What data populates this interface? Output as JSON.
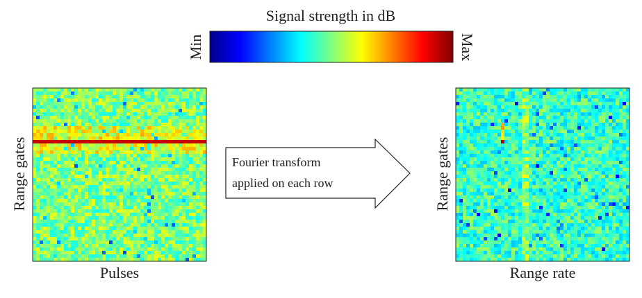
{
  "colorbar": {
    "title": "Signal strength in dB",
    "min_label": "Min",
    "max_label": "Max"
  },
  "left_panel": {
    "y_label": "Range gates",
    "x_label": "Pulses"
  },
  "arrow": {
    "lines": [
      "Fourier transform",
      "applied on each row"
    ]
  },
  "right_panel": {
    "y_label": "Range gates",
    "x_label": "Range rate"
  }
}
